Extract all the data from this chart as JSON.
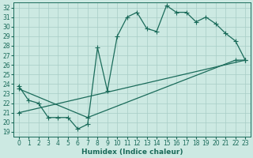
{
  "xlabel": "Humidex (Indice chaleur)",
  "xlim": [
    -0.5,
    23.5
  ],
  "ylim": [
    18.5,
    32.5
  ],
  "xticks": [
    0,
    1,
    2,
    3,
    4,
    5,
    6,
    7,
    8,
    9,
    10,
    11,
    12,
    13,
    14,
    15,
    16,
    17,
    18,
    19,
    20,
    21,
    22,
    23
  ],
  "yticks": [
    19,
    20,
    21,
    22,
    23,
    24,
    25,
    26,
    27,
    28,
    29,
    30,
    31,
    32
  ],
  "bg_color": "#cce9e2",
  "grid_color": "#a8cdc6",
  "line_color": "#1a6b5a",
  "line1_x": [
    0,
    1,
    2,
    3,
    4,
    5,
    6,
    7,
    8,
    9,
    10,
    11,
    12,
    13,
    14,
    15,
    16,
    17,
    18,
    19,
    20,
    21,
    22,
    23
  ],
  "line1_y": [
    23.8,
    22.3,
    22.0,
    20.5,
    20.5,
    20.5,
    19.3,
    19.8,
    27.8,
    23.3,
    29.0,
    31.0,
    31.5,
    29.8,
    29.5,
    32.2,
    31.5,
    31.5,
    30.5,
    31.0,
    30.3,
    29.3,
    28.5,
    26.5
  ],
  "line2_x": [
    0,
    7,
    22,
    23
  ],
  "line2_y": [
    23.5,
    20.5,
    26.5,
    26.5
  ],
  "line3_x": [
    0,
    23
  ],
  "line3_y": [
    21.0,
    26.5
  ],
  "markersize": 2.5,
  "linewidth": 0.9,
  "tick_fontsize": 5.5,
  "label_fontsize": 6.5
}
